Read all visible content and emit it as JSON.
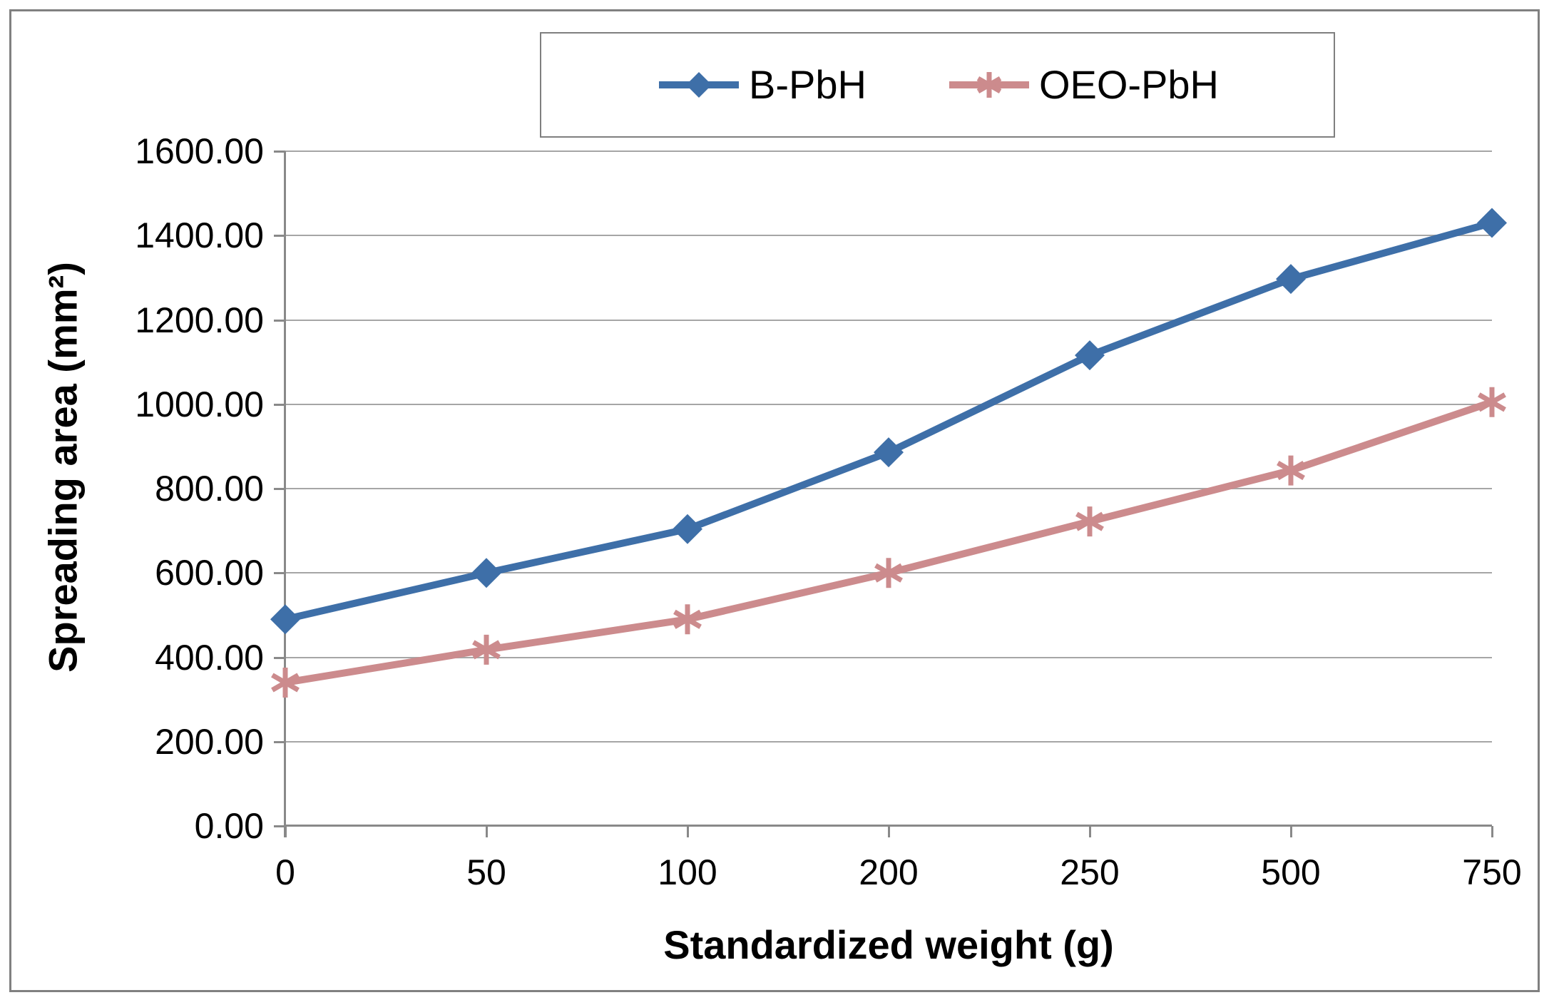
{
  "figure": {
    "background": "#FFFFFF",
    "border_color": "#808080"
  },
  "chart_data": {
    "type": "line",
    "xlabel": "Standardized weight (g)",
    "ylabel": "Spreading area (mm²)",
    "categories": [
      0,
      50,
      100,
      200,
      250,
      500,
      750
    ],
    "x_tick_labels": [
      "0",
      "50",
      "100",
      "200",
      "250",
      "500",
      "750"
    ],
    "y_tick_labels": [
      "0.00",
      "200.00",
      "400.00",
      "600.00",
      "800.00",
      "1000.00",
      "1200.00",
      "1400.00",
      "1600.00"
    ],
    "ylim": [
      0,
      1600
    ],
    "ytick_step": 200,
    "grid": "horizontal",
    "legend_position": "top-center",
    "gridline_color": "#A6A6A6",
    "axis_color": "#898989",
    "series": [
      {
        "name": "B-PbH",
        "color": "#3E6FA8",
        "marker": "diamond",
        "values": [
          490,
          600,
          704,
          886,
          1116,
          1297,
          1430
        ]
      },
      {
        "name": "OEO-PbH",
        "color": "#CC8B8D",
        "marker": "asterisk",
        "values": [
          340,
          418,
          490,
          600,
          722,
          843,
          1005
        ]
      }
    ]
  }
}
